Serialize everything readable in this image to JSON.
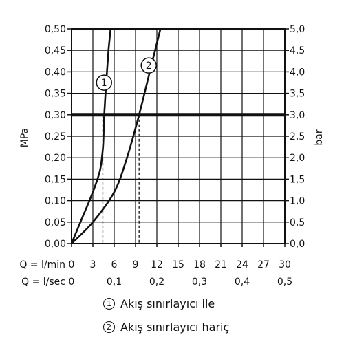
{
  "chart_data": {
    "type": "line",
    "xlabel_primary": "Q = l/min",
    "xlabel_secondary": "Q = l/sec",
    "ylabel_left": "MPa",
    "ylabel_right": "bar",
    "xlim": [
      0,
      30
    ],
    "ylim": [
      0,
      0.5
    ],
    "y2lim": [
      0,
      5.0
    ],
    "x_ticks": [
      "0",
      "3",
      "6",
      "9",
      "12",
      "15",
      "18",
      "21",
      "24",
      "27",
      "30"
    ],
    "x2_ticks": [
      "0",
      "0,1",
      "0,2",
      "0,3",
      "0,4",
      "0,5"
    ],
    "y_ticks": [
      "0,00",
      "0,05",
      "0,10",
      "0,15",
      "0,20",
      "0,25",
      "0,30",
      "0,35",
      "0,40",
      "0,45",
      "0,50"
    ],
    "y2_ticks": [
      "0,0",
      "0,5",
      "1,0",
      "1,5",
      "2,0",
      "2,5",
      "3,0",
      "3,5",
      "4,0",
      "4,5",
      "5,0"
    ],
    "grid": true,
    "reference_line": {
      "y": 0.3
    },
    "series": [
      {
        "marker": "1",
        "x": [
          0,
          1.5,
          3.0,
          4.0,
          4.4,
          4.5,
          4.6,
          4.9,
          5.2,
          5.5
        ],
        "y": [
          0,
          0.06,
          0.12,
          0.17,
          0.22,
          0.25,
          0.3,
          0.38,
          0.45,
          0.5
        ],
        "drop_line_x": 4.4
      },
      {
        "marker": "2",
        "x": [
          0,
          3.0,
          6.0,
          7.8,
          9.5,
          11.0,
          12.5
        ],
        "y": [
          0,
          0.05,
          0.12,
          0.2,
          0.3,
          0.4,
          0.5
        ],
        "drop_line_x": 9.5
      }
    ]
  },
  "legend": [
    {
      "marker": "1",
      "label": "Akış sınırlayıcı ile"
    },
    {
      "marker": "2",
      "label": "Akış sınırlayıcı hariç"
    }
  ]
}
